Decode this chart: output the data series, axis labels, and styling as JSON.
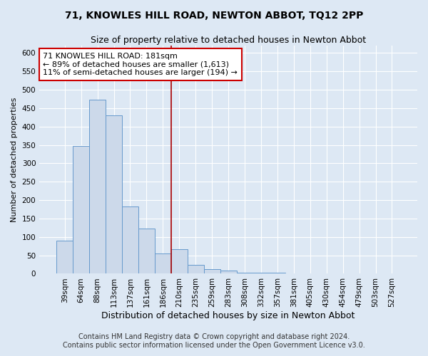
{
  "title": "71, KNOWLES HILL ROAD, NEWTON ABBOT, TQ12 2PP",
  "subtitle": "Size of property relative to detached houses in Newton Abbot",
  "xlabel": "Distribution of detached houses by size in Newton Abbot",
  "ylabel": "Number of detached properties",
  "bar_labels": [
    "39sqm",
    "64sqm",
    "88sqm",
    "113sqm",
    "137sqm",
    "161sqm",
    "186sqm",
    "210sqm",
    "235sqm",
    "259sqm",
    "283sqm",
    "308sqm",
    "332sqm",
    "357sqm",
    "381sqm",
    "405sqm",
    "430sqm",
    "454sqm",
    "479sqm",
    "503sqm",
    "527sqm"
  ],
  "bar_values": [
    90,
    348,
    473,
    430,
    183,
    122,
    55,
    66,
    25,
    12,
    8,
    3,
    2,
    2,
    1,
    1,
    0,
    0,
    0,
    0,
    0
  ],
  "bar_color": "#ccd9ea",
  "bar_edge_color": "#6699cc",
  "vline_index": 6,
  "vline_color": "#aa0000",
  "annotation_text": "71 KNOWLES HILL ROAD: 181sqm\n← 89% of detached houses are smaller (1,613)\n11% of semi-detached houses are larger (194) →",
  "annotation_box_color": "#ffffff",
  "annotation_box_edge": "#cc0000",
  "ylim": [
    0,
    620
  ],
  "yticks": [
    0,
    50,
    100,
    150,
    200,
    250,
    300,
    350,
    400,
    450,
    500,
    550,
    600
  ],
  "background_color": "#dde8f4",
  "plot_bg_color": "#dde8f4",
  "footer_line1": "Contains HM Land Registry data © Crown copyright and database right 2024.",
  "footer_line2": "Contains public sector information licensed under the Open Government Licence v3.0.",
  "title_fontsize": 10,
  "subtitle_fontsize": 9,
  "xlabel_fontsize": 9,
  "ylabel_fontsize": 8,
  "tick_fontsize": 7.5,
  "annotation_fontsize": 8,
  "footer_fontsize": 7
}
